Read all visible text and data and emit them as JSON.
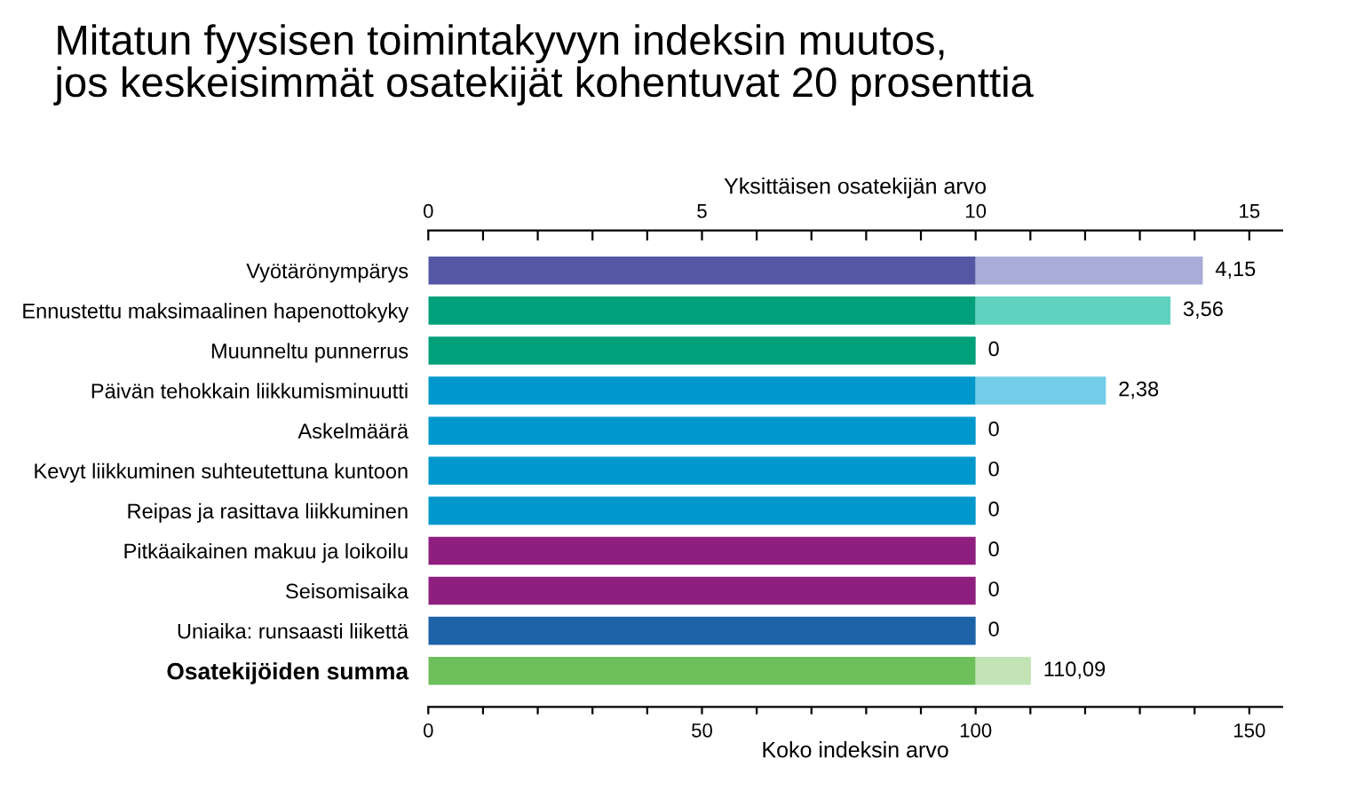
{
  "chart_data": {
    "type": "bar",
    "orientation": "horizontal",
    "stacked": true,
    "title": "Mitatun fyysisen toimintakyvyn indeksin muutos,\njos keskeisimmät osatekijät kohentuvat 20 prosenttia",
    "x2label": "Yksittäisen osatekijän arvo",
    "xlabel": "Koko indeksin arvo",
    "categories": [
      "Vyötärönympärys",
      "Ennustettu maksimaalinen hapenottokyky",
      "Muunneltu punnerrus",
      "Päivän tehokkain liikkumisminuutti",
      "Askelmäärä",
      "Kevyt liikkuminen suhteutettuna kuntoon",
      "Reipas ja rasittava liikkuminen",
      "Pitkäaikainen makuu ja loikoilu",
      "Seisomisaika",
      "Uniaika: runsaasti liikettä",
      "Osatekijöiden summa"
    ],
    "series": [
      {
        "axis": "x2",
        "colors": [
          "#5557a5",
          "#00a07a",
          "#00a07a",
          "#0098cc",
          "#0098cc",
          "#0098cc",
          "#0098cc",
          "#8f1f7f",
          "#8f1f7f",
          "#1c63a8",
          null
        ],
        "values": [
          10,
          10,
          10,
          10,
          10,
          10,
          10,
          10,
          10,
          10,
          null
        ]
      },
      {
        "axis": "x2",
        "colors": [
          "#aaacd8",
          "#5fd3c0",
          "#5fd3c0",
          "#74cde8",
          "#74cde8",
          "#74cde8",
          "#74cde8",
          "#c98fc0",
          "#c98fc0",
          "#8fb6dc",
          null
        ],
        "values": [
          4.15,
          3.56,
          0,
          2.38,
          0,
          0,
          0,
          0,
          0,
          0,
          null
        ],
        "value_labels": [
          "4,15",
          "3,56",
          "0",
          "2,38",
          "0",
          "0",
          "0",
          "0",
          "0",
          "0",
          null
        ]
      },
      {
        "colors": [
          null,
          null,
          null,
          null,
          null,
          null,
          null,
          null,
          null,
          null,
          "#6cbf5a"
        ],
        "values": [
          null,
          null,
          null,
          null,
          null,
          null,
          null,
          null,
          null,
          null,
          100
        ]
      },
      {
        "colors": [
          null,
          null,
          null,
          null,
          null,
          null,
          null,
          null,
          null,
          null,
          "#c2e4b5"
        ],
        "values": [
          null,
          null,
          null,
          null,
          null,
          null,
          null,
          null,
          null,
          null,
          10.09
        ]
      }
    ],
    "totals": [
      null,
      null,
      null,
      null,
      null,
      null,
      null,
      null,
      null,
      null,
      "110,09"
    ],
    "x2lim": [
      0,
      15.6
    ],
    "x2ticks": [
      0,
      {
        "value": 1,
        "label": null
      },
      {
        "value": 2,
        "label": null
      },
      {
        "value": 3,
        "label": null
      },
      {
        "value": 4,
        "label": null
      },
      5,
      {
        "value": 6,
        "label": null
      },
      {
        "value": 7,
        "label": null
      },
      {
        "value": 8,
        "label": null
      },
      {
        "value": 9,
        "label": null
      },
      10,
      {
        "value": 11,
        "label": null
      },
      {
        "value": 12,
        "label": null
      },
      {
        "value": 13,
        "label": null
      },
      {
        "value": 14,
        "label": null
      },
      15
    ],
    "xlim": [
      0,
      156
    ],
    "xticks": [
      0,
      {
        "value": 10,
        "label": null
      },
      {
        "value": 20,
        "label": null
      },
      {
        "value": 30,
        "label": null
      },
      {
        "value": 40,
        "label": null
      },
      50,
      {
        "value": 60,
        "label": null
      },
      {
        "value": 70,
        "label": null
      },
      {
        "value": 80,
        "label": null
      },
      {
        "value": 90,
        "label": null
      },
      100,
      {
        "value": 110,
        "label": null
      },
      {
        "value": 120,
        "label": null
      },
      {
        "value": 130,
        "label": null
      },
      {
        "value": 140,
        "label": null
      },
      150
    ],
    "grid": false,
    "legend": false
  }
}
